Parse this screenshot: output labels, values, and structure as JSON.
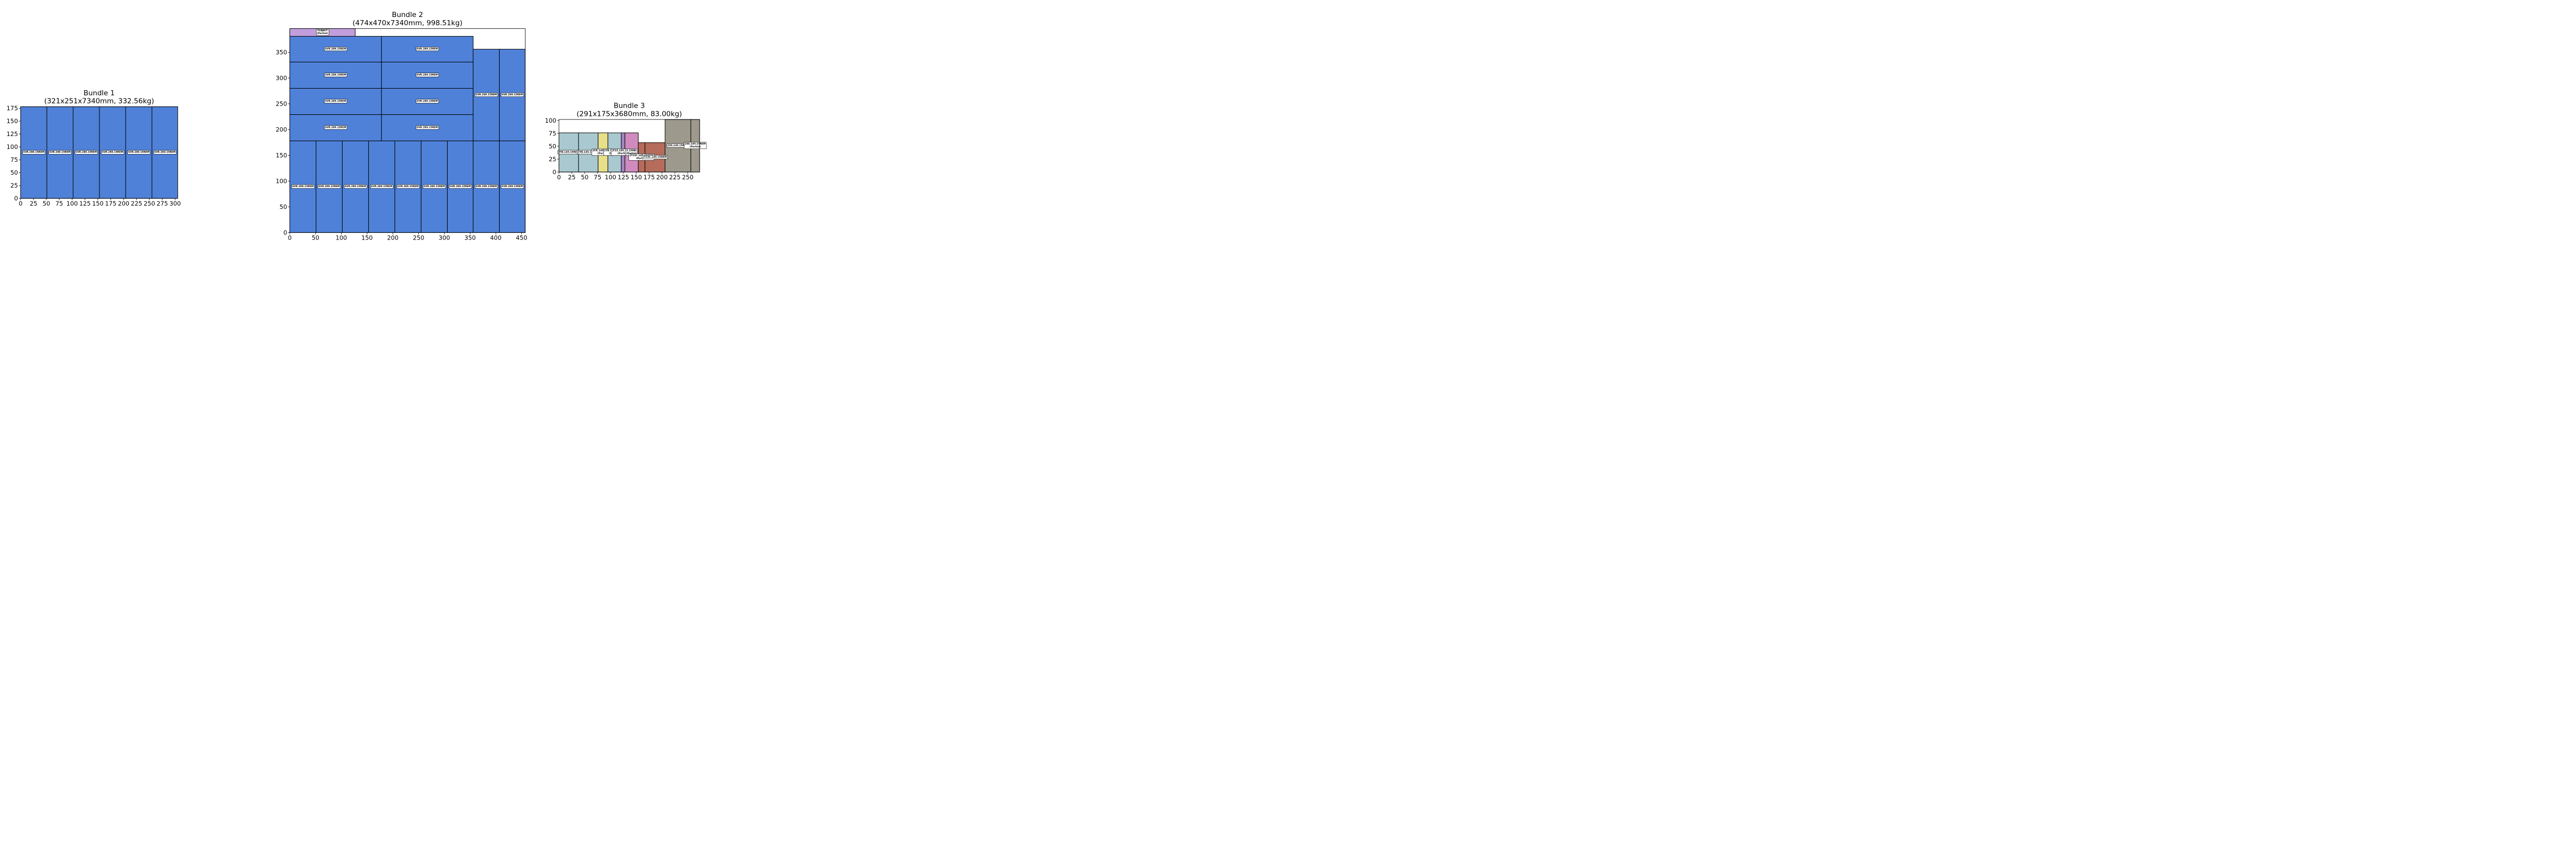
{
  "chart_data": [
    {
      "type": "bar",
      "title": "Bundle 1",
      "subtitle": "(321x251x7340mm, 332.56kg)",
      "xlim": [
        0,
        305
      ],
      "ylim": [
        0,
        178
      ],
      "xticks": [
        0,
        25,
        50,
        75,
        100,
        125,
        150,
        175,
        200,
        225,
        250,
        275,
        300
      ],
      "yticks": [
        0,
        25,
        50,
        75,
        100,
        125,
        150,
        175
      ],
      "grid": false,
      "items": [
        {
          "label": "6VR.289.15REM",
          "x0": 0,
          "y0": 0,
          "x1": 51,
          "y1": 178,
          "color": "#4f81d8"
        },
        {
          "label": "6VR.289.15REM",
          "x0": 51,
          "y0": 0,
          "x1": 102,
          "y1": 178,
          "color": "#4f81d8"
        },
        {
          "label": "6VR.289.15REM",
          "x0": 102,
          "y0": 0,
          "x1": 153,
          "y1": 178,
          "color": "#4f81d8"
        },
        {
          "label": "6VR.289.15REM",
          "x0": 153,
          "y0": 0,
          "x1": 204,
          "y1": 178,
          "color": "#4f81d8"
        },
        {
          "label": "6VR.289.15REM",
          "x0": 204,
          "y0": 0,
          "x1": 255,
          "y1": 178,
          "color": "#4f81d8"
        },
        {
          "label": "6VR.289.15REM",
          "x0": 255,
          "y0": 0,
          "x1": 305,
          "y1": 178,
          "color": "#4f81d8"
        }
      ]
    },
    {
      "type": "bar",
      "title": "Bundle 2",
      "subtitle": "(474x470x7340mm, 998.51kg)",
      "xlim": [
        0,
        457
      ],
      "ylim": [
        0,
        396
      ],
      "xticks": [
        0,
        50,
        100,
        150,
        200,
        250,
        300,
        350,
        400,
        450
      ],
      "yticks": [
        0,
        50,
        100,
        150,
        200,
        250,
        300,
        350
      ],
      "grid": false,
      "items": [
        {
          "label": "6VR.289.15REM",
          "x0": 0,
          "y0": 0,
          "x1": 51,
          "y1": 178,
          "color": "#4f81d8"
        },
        {
          "label": "6VR.289.15REM",
          "x0": 51,
          "y0": 0,
          "x1": 102,
          "y1": 178,
          "color": "#4f81d8"
        },
        {
          "label": "6VR.289.15REM",
          "x0": 102,
          "y0": 0,
          "x1": 153,
          "y1": 178,
          "color": "#4f81d8"
        },
        {
          "label": "6VR.289.15REM",
          "x0": 153,
          "y0": 0,
          "x1": 204,
          "y1": 178,
          "color": "#4f81d8"
        },
        {
          "label": "6VR.289.15REM",
          "x0": 204,
          "y0": 0,
          "x1": 255,
          "y1": 178,
          "color": "#4f81d8"
        },
        {
          "label": "6VR.289.15REM",
          "x0": 255,
          "y0": 0,
          "x1": 306,
          "y1": 178,
          "color": "#4f81d8"
        },
        {
          "label": "6VR.289.15REM",
          "x0": 306,
          "y0": 0,
          "x1": 356,
          "y1": 178,
          "color": "#4f81d8"
        },
        {
          "label": "6VR.289.15REM",
          "x0": 356,
          "y0": 0,
          "x1": 407,
          "y1": 178,
          "color": "#4f81d8"
        },
        {
          "label": "6VR.289.15REM",
          "x0": 407,
          "y0": 0,
          "x1": 457,
          "y1": 178,
          "color": "#4f81d8"
        },
        {
          "label": "6VR.289.15REM",
          "x0": 0,
          "y0": 178,
          "x1": 178,
          "y1": 229,
          "color": "#4f81d8"
        },
        {
          "label": "6VR.289.15REM",
          "x0": 178,
          "y0": 178,
          "x1": 356,
          "y1": 229,
          "color": "#4f81d8"
        },
        {
          "label": "6VR.289.15REM",
          "x0": 0,
          "y0": 229,
          "x1": 178,
          "y1": 280,
          "color": "#4f81d8"
        },
        {
          "label": "6VR.289.15REM",
          "x0": 178,
          "y0": 229,
          "x1": 356,
          "y1": 280,
          "color": "#4f81d8"
        },
        {
          "label": "6VR.289.15REM",
          "x0": 0,
          "y0": 280,
          "x1": 178,
          "y1": 331,
          "color": "#4f81d8"
        },
        {
          "label": "6VR.289.15REM",
          "x0": 178,
          "y0": 280,
          "x1": 356,
          "y1": 331,
          "color": "#4f81d8"
        },
        {
          "label": "6VR.289.15REM",
          "x0": 0,
          "y0": 331,
          "x1": 178,
          "y1": 381,
          "color": "#4f81d8"
        },
        {
          "label": "6VR.289.15REM",
          "x0": 178,
          "y0": 331,
          "x1": 356,
          "y1": 381,
          "color": "#4f81d8"
        },
        {
          "label": "6VR.289.15REM",
          "x0": 356,
          "y0": 178,
          "x1": 407,
          "y1": 356,
          "color": "#4f81d8"
        },
        {
          "label": "6VR.289.15REM",
          "x0": 407,
          "y0": 178,
          "x1": 457,
          "y1": 356,
          "color": "#4f81d8"
        },
        {
          "label": "TGBJKIT",
          "sublabel": "(Partial)",
          "x0": 0,
          "y0": 381,
          "x1": 127,
          "y1": 396,
          "color": "#c29fdc"
        }
      ]
    },
    {
      "type": "bar",
      "title": "Bundle 3",
      "subtitle": "(291x175x3680mm, 83.00kg)",
      "xlim": [
        0,
        273
      ],
      "ylim": [
        0,
        102
      ],
      "xticks": [
        0,
        25,
        50,
        75,
        100,
        125,
        150,
        175,
        200,
        225,
        250
      ],
      "yticks": [
        0,
        25,
        50,
        75,
        100
      ],
      "grid": false,
      "items": [
        {
          "label": "2TB.145.15REM",
          "x0": 0,
          "y0": 0,
          "x1": 38,
          "y1": 76,
          "color": "#a9c8cf"
        },
        {
          "label": "2TB.145.15REM",
          "x0": 38,
          "y0": 0,
          "x1": 76,
          "y1": 76,
          "color": "#a9c8cf"
        },
        {
          "label": "2FR.145.15REM",
          "sublabel": "(Partial)",
          "x0": 76,
          "y0": 0,
          "x1": 95,
          "y1": 76,
          "color": "#e8df8a"
        },
        {
          "label": "2TB.145.15REM",
          "sublabel": "(Partial)",
          "x0": 95,
          "y0": 0,
          "x1": 121,
          "y1": 76,
          "color": "#a9c8cf"
        },
        {
          "label": "JT23.145.15REM",
          "sublabel": "(Partial)",
          "x0": 121,
          "y0": 0,
          "x1": 128,
          "y1": 76,
          "color": "#a584c2"
        },
        {
          "label": "3.150BL",
          "sublabel": "(Partial)",
          "x0": 128,
          "y0": 0,
          "x1": 154,
          "y1": 76,
          "color": "#d08bbe"
        },
        {
          "label": "JT23C.145.15REM",
          "sublabel": "(Partial)",
          "x0": 154,
          "y0": 0,
          "x1": 167,
          "y1": 57,
          "color": "#b56c5b"
        },
        {
          "label": "JT23C.145.15REM",
          "x0": 167,
          "y0": 0,
          "x1": 206,
          "y1": 57,
          "color": "#b56c5b"
        },
        {
          "label": "2SS.145.15REM",
          "x0": 206,
          "y0": 0,
          "x1": 256,
          "y1": 102,
          "color": "#9d998c"
        },
        {
          "label": "2SS.145.15REM",
          "sublabel": "(Partial)",
          "x0": 256,
          "y0": 0,
          "x1": 273,
          "y1": 102,
          "color": "#9d998c"
        }
      ]
    }
  ]
}
